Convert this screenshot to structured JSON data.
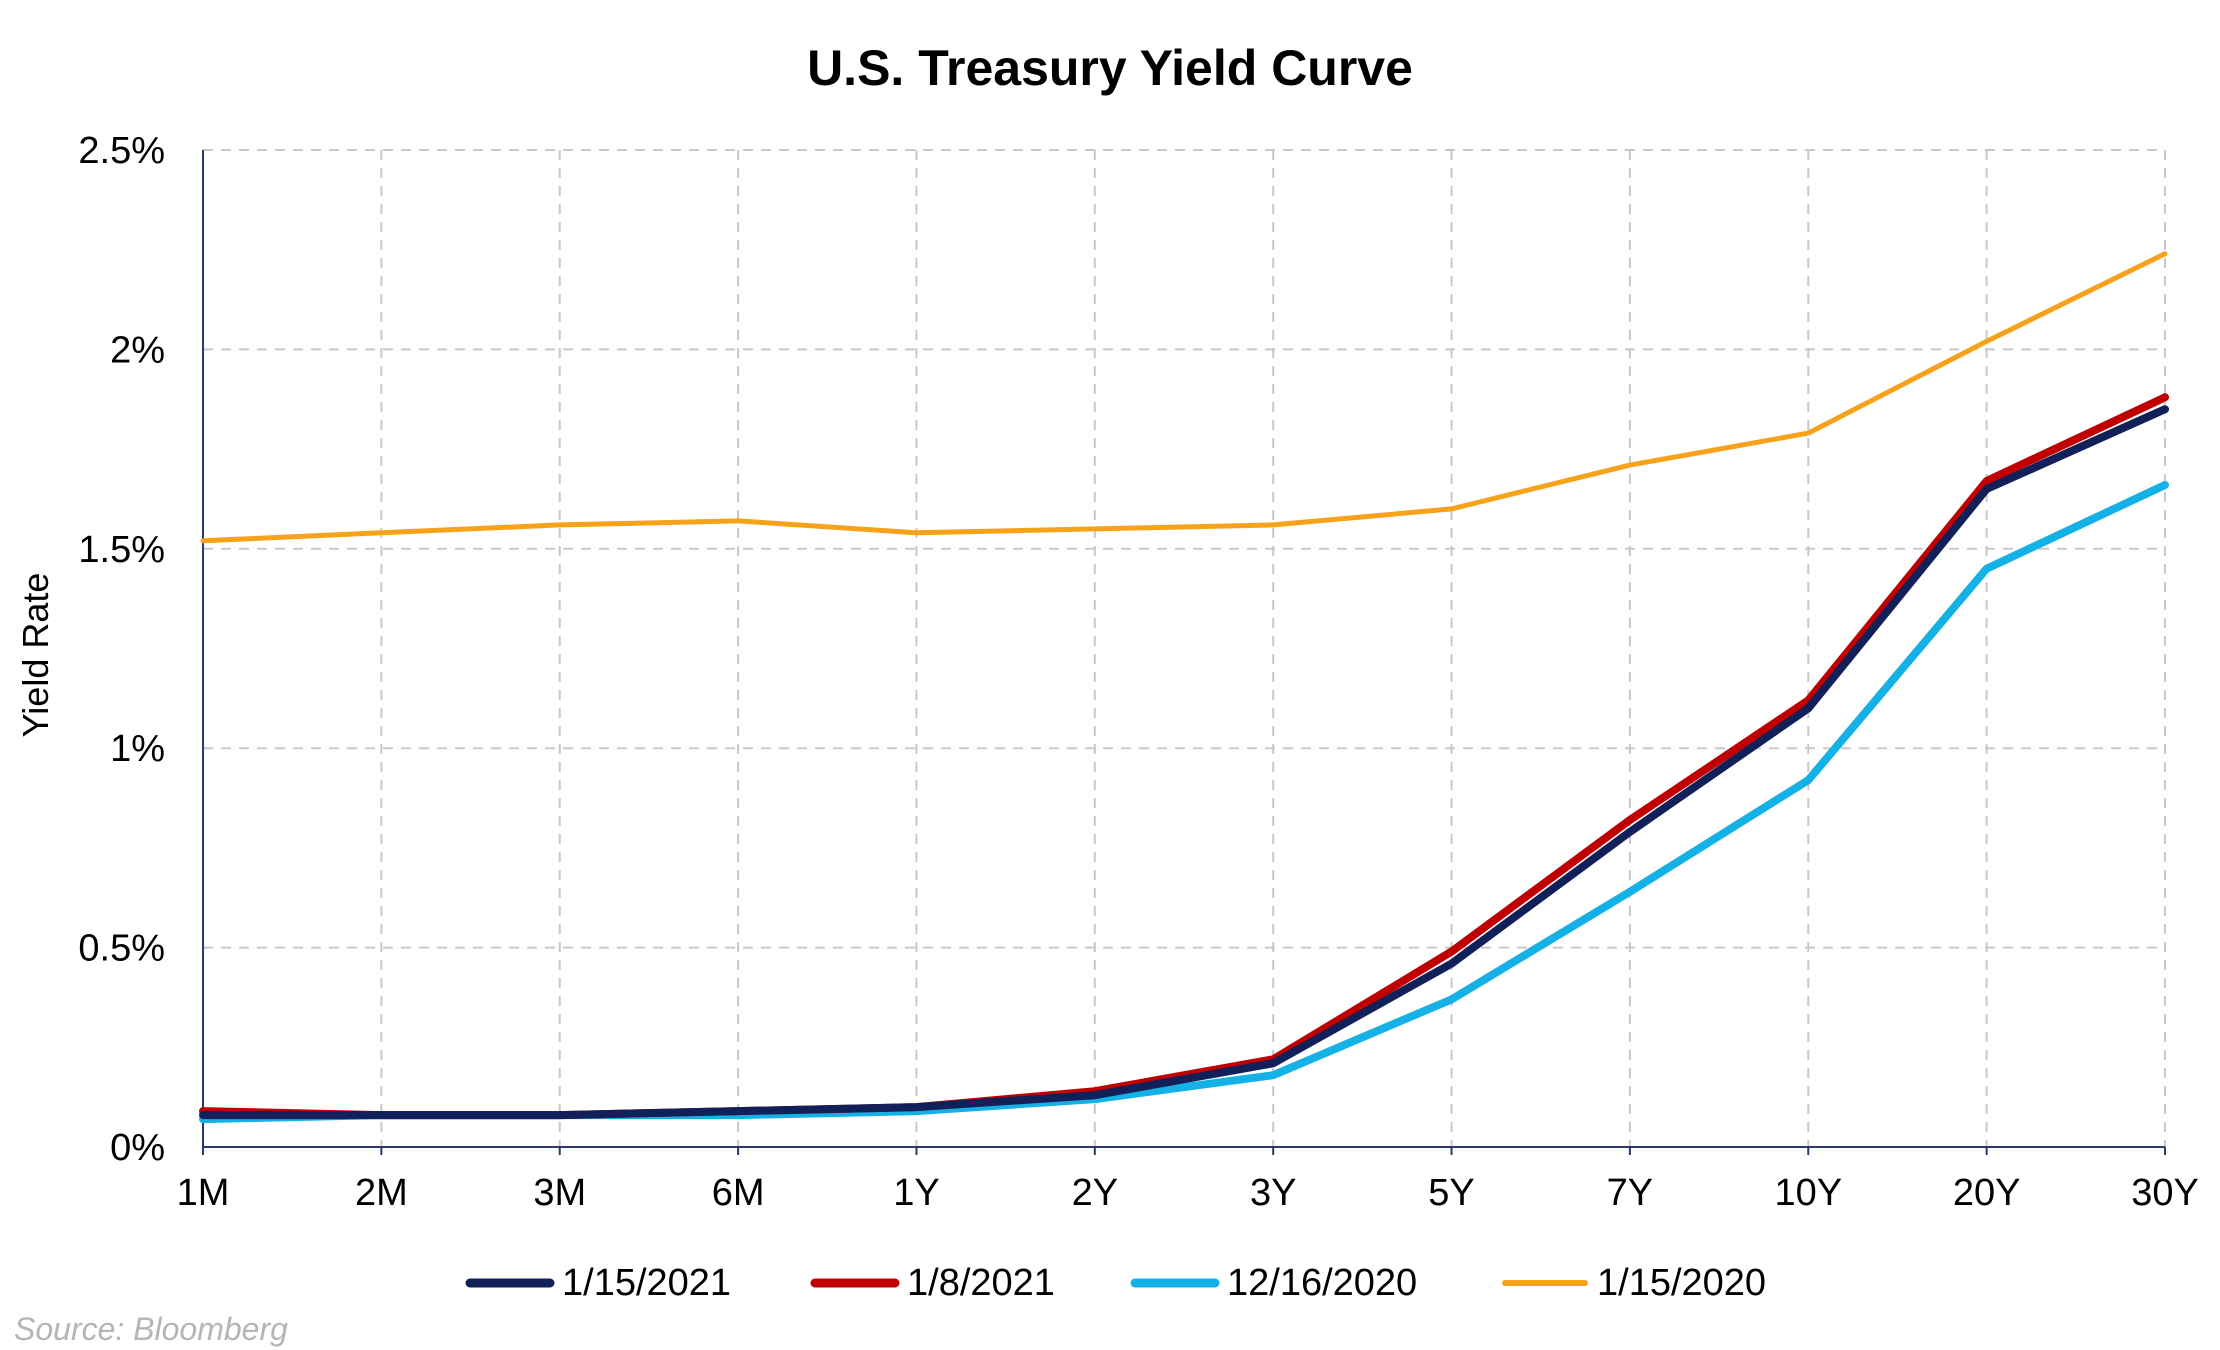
{
  "chart_data": {
    "type": "line",
    "title": "U.S. Treasury Yield Curve",
    "xlabel": "",
    "ylabel": "Yield Rate",
    "categories": [
      "1M",
      "2M",
      "3M",
      "6M",
      "1Y",
      "2Y",
      "3Y",
      "5Y",
      "7Y",
      "10Y",
      "20Y",
      "30Y"
    ],
    "ylim": [
      0,
      2.5
    ],
    "yticks": [
      0,
      0.5,
      1,
      1.5,
      2,
      2.5
    ],
    "ytick_labels": [
      "0%",
      "0.5%",
      "1%",
      "1.5%",
      "2%",
      "2.5%"
    ],
    "grid": true,
    "legend_position": "bottom",
    "series": [
      {
        "name": "1/15/2021",
        "color": "#12205a",
        "values": [
          0.08,
          0.08,
          0.08,
          0.09,
          0.1,
          0.13,
          0.21,
          0.46,
          0.79,
          1.1,
          1.65,
          1.85
        ]
      },
      {
        "name": "1/8/2021",
        "color": "#c00000",
        "values": [
          0.09,
          0.08,
          0.08,
          0.09,
          0.1,
          0.14,
          0.22,
          0.49,
          0.82,
          1.12,
          1.67,
          1.88
        ]
      },
      {
        "name": "12/16/2020",
        "color": "#14b1e7",
        "values": [
          0.07,
          0.08,
          0.08,
          0.08,
          0.09,
          0.12,
          0.18,
          0.37,
          0.64,
          0.92,
          1.45,
          1.66
        ]
      },
      {
        "name": "1/15/2020",
        "color": "#f7a21b",
        "values": [
          1.52,
          1.54,
          1.56,
          1.57,
          1.54,
          1.55,
          1.56,
          1.6,
          1.71,
          1.79,
          2.02,
          2.24
        ]
      }
    ]
  },
  "source_text": "Source: Bloomberg"
}
